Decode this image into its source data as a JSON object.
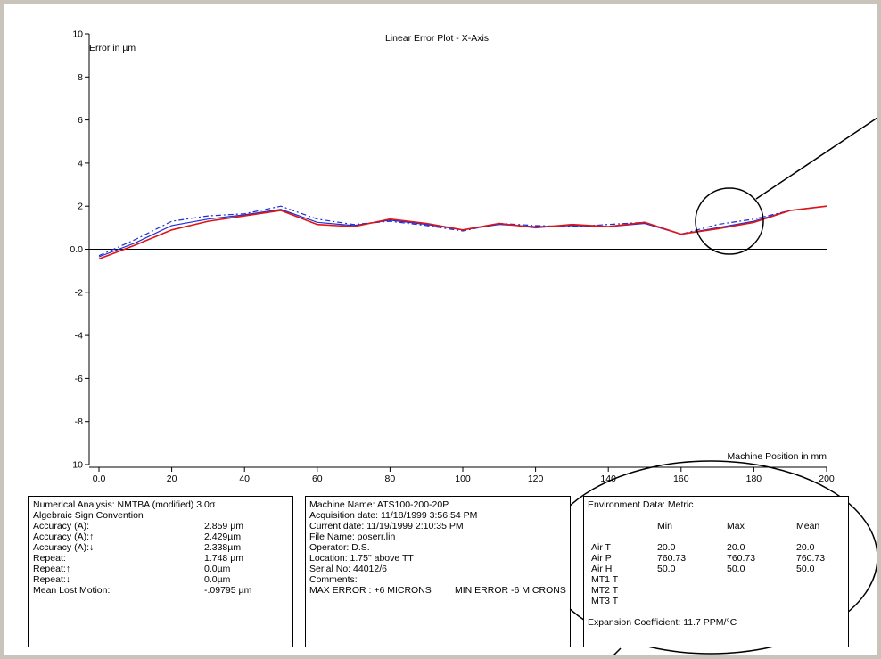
{
  "chart_data": {
    "type": "line",
    "title": "Linear Error Plot - X-Axis",
    "ylabel": "Error in µm",
    "xlabel": "Machine Position in mm",
    "xlim": [
      0,
      200
    ],
    "ylim": [
      -10,
      10
    ],
    "x_ticks": [
      "0.0",
      "20",
      "40",
      "60",
      "80",
      "100",
      "120",
      "140",
      "160",
      "180",
      "200"
    ],
    "y_ticks": [
      "10",
      "8",
      "6",
      "4",
      "2",
      "0.0",
      "-2",
      "-4",
      "-6",
      "-8",
      "-10"
    ],
    "grid": false,
    "legend": "none",
    "x": [
      0,
      10,
      20,
      30,
      40,
      50,
      60,
      70,
      80,
      90,
      100,
      110,
      120,
      130,
      140,
      150,
      160,
      170,
      180,
      190,
      200
    ],
    "series": [
      {
        "color": "#1f2fd6",
        "style": "solid",
        "values": [
          -0.35,
          0.3,
          1.1,
          1.4,
          1.6,
          1.85,
          1.25,
          1.1,
          1.35,
          1.15,
          0.9,
          1.15,
          1.05,
          1.1,
          1.05,
          1.2,
          0.7,
          1.0,
          1.3,
          1.8,
          2.0
        ]
      },
      {
        "color": "#1f2fd6",
        "style": "dashed",
        "values": [
          -0.3,
          0.45,
          1.3,
          1.55,
          1.65,
          2.0,
          1.4,
          1.15,
          1.3,
          1.1,
          0.85,
          1.2,
          1.1,
          1.05,
          1.15,
          1.25,
          0.7,
          1.15,
          1.4,
          1.8,
          2.0
        ]
      },
      {
        "color": "#e01414",
        "style": "solid",
        "values": [
          -0.45,
          0.2,
          0.9,
          1.3,
          1.55,
          1.8,
          1.15,
          1.05,
          1.4,
          1.2,
          0.9,
          1.2,
          1.0,
          1.15,
          1.05,
          1.25,
          0.7,
          0.95,
          1.25,
          1.8,
          2.0
        ]
      }
    ]
  },
  "analysis": {
    "title": "Numerical Analysis:  NMTBA (modified) 3.0σ",
    "convention": "Algebraic Sign Convention",
    "rows": [
      {
        "label": "Accuracy (A):",
        "value": "2.859 µm"
      },
      {
        "label": "Accuracy (A):↑",
        "value": "2.429µm"
      },
      {
        "label": "Accuracy (A):↓",
        "value": "2.338µm"
      },
      {
        "label": "Repeat:",
        "value": "1.748 µm"
      },
      {
        "label": "Repeat:↑",
        "value": "0.0µm"
      },
      {
        "label": "Repeat:↓",
        "value": "0.0µm"
      },
      {
        "label": "Mean Lost Motion:",
        "value": "-.09795 µm"
      }
    ]
  },
  "machine": {
    "lines": [
      "Machine Name: ATS100-200-20P",
      "Acquisition date: 11/18/1999 3:56:54 PM",
      "Current date: 11/19/1999 2:10:35 PM",
      "File Name:  poserr.lin",
      "Operator:  D.S.",
      "Location:  1.75\" above TT",
      "Serial No:  44012/6",
      "Comments:"
    ],
    "max_error": "MAX ERROR :  +6 MICRONS",
    "min_error": "MIN ERROR -6 MICRONS"
  },
  "environment": {
    "title": "Environment Data: Metric",
    "headers": [
      "Min",
      "Max",
      "Mean"
    ],
    "rows": [
      {
        "label": "Air T",
        "min": "20.0",
        "max": "20.0",
        "mean": "20.0"
      },
      {
        "label": "Air P",
        "min": "760.73",
        "max": "760.73",
        "mean": "760.73"
      },
      {
        "label": "Air H",
        "min": "50.0",
        "max": "50.0",
        "mean": "50.0"
      },
      {
        "label": "MT1 T",
        "min": "",
        "max": "",
        "mean": ""
      },
      {
        "label": "MT2 T",
        "min": "",
        "max": "",
        "mean": ""
      },
      {
        "label": "MT3 T",
        "min": "",
        "max": "",
        "mean": ""
      }
    ],
    "expansion": "Expansion Coefficient: 11.7 PPM/°C"
  }
}
